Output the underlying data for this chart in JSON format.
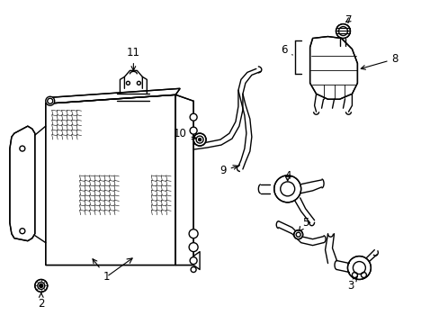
{
  "bg_color": "#ffffff",
  "lc": "#000000",
  "lw": 1.0,
  "fig_w": 4.89,
  "fig_h": 3.6,
  "dpi": 100,
  "label_fs": 8.5
}
